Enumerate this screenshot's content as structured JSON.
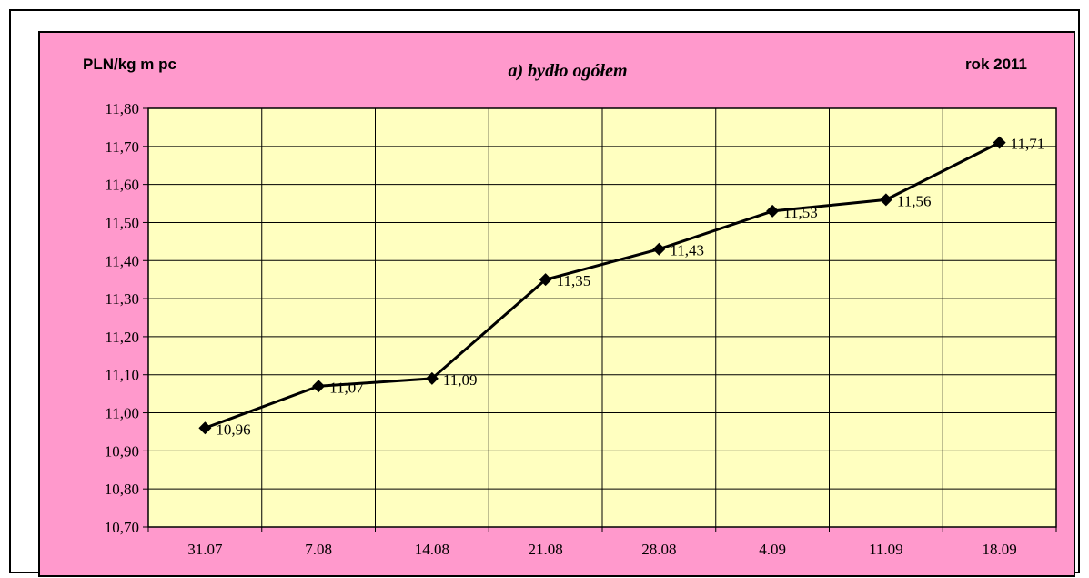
{
  "chart_data": {
    "type": "line",
    "title": "a) bydło ogółem",
    "unit_label": "PLN/kg m pc",
    "year_label": "rok 2011",
    "categories": [
      "31.07",
      "7.08",
      "14.08",
      "21.08",
      "28.08",
      "4.09",
      "11.09",
      "18.09"
    ],
    "series": [
      {
        "values": [
          10.96,
          11.07,
          11.09,
          11.35,
          11.43,
          11.53,
          11.56,
          11.71
        ],
        "data_labels": [
          "10,96",
          "11,07",
          "11,09",
          "11,35",
          "11,43",
          "11,53",
          "11,56",
          "11,71"
        ]
      }
    ],
    "ylim": [
      10.7,
      11.8
    ],
    "ytick_step": 0.1,
    "yticks": [
      "10,70",
      "10,80",
      "10,90",
      "11,00",
      "11,10",
      "11,20",
      "11,30",
      "11,40",
      "11,50",
      "11,60",
      "11,70",
      "11,80"
    ],
    "grid": true,
    "legend": false,
    "colors": {
      "background": "#ff99cc",
      "plot_area": "#ffffc0",
      "line": "#000000",
      "marker": "#000000",
      "gridline": "#000000"
    }
  }
}
